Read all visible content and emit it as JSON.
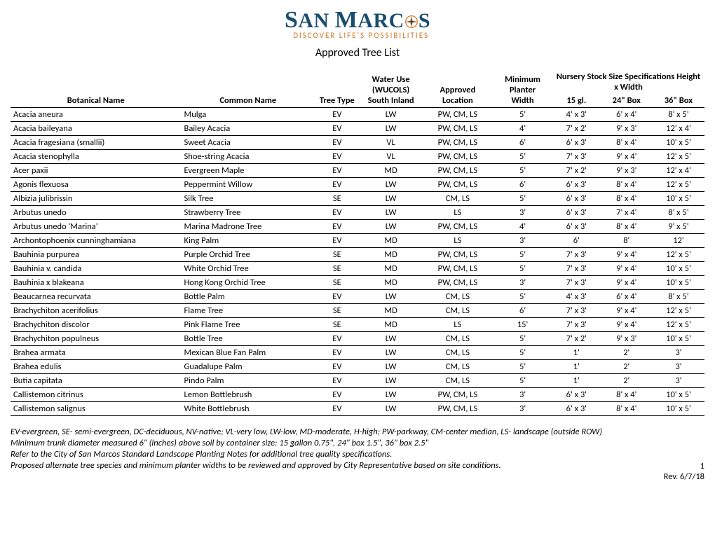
{
  "logo": {
    "main_text_pre": "S",
    "main_text_an": "AN",
    "main_text_space": " ",
    "main_text_m": "M",
    "main_text_arc": "ARC",
    "main_text_s": "S",
    "subtitle": "DISCOVER LIFE'S POSSIBILITIES"
  },
  "page_title": "Approved Tree List",
  "headers": {
    "botanical": "Botanical Name",
    "common": "Common Name",
    "tree_type": "Tree Type",
    "water_use_1": "Water Use",
    "water_use_2": "(WUCOLS)",
    "water_use_3": "South Inland",
    "approved_location": "Approved Location",
    "minimum_1": "Minimum",
    "minimum_2": "Planter",
    "minimum_3": "Width",
    "nursery": "Nursery Stock Size Specifications  Height x Width",
    "gl15": "15 gl.",
    "box24": "24\" Box",
    "box36": "36\" Box"
  },
  "rows": [
    {
      "botanical": "Acacia aneura",
      "common": "Mulga",
      "type": "EV",
      "water": "LW",
      "location": "PW, CM, LS",
      "width": "5'",
      "gl15": "4' x 3'",
      "box24": "6' x 4'",
      "box36": "8' x 5'"
    },
    {
      "botanical": "Acacia baileyana",
      "common": "Bailey Acacia",
      "type": "EV",
      "water": "LW",
      "location": "PW, CM, LS",
      "width": "4'",
      "gl15": "7' x 2'",
      "box24": "9' x 3'",
      "box36": "12' x 4'"
    },
    {
      "botanical": "Acacia fragesiana (smallii)",
      "common": "Sweet Acacia",
      "type": "EV",
      "water": "VL",
      "location": "PW, CM, LS",
      "width": "6'",
      "gl15": "6' x 3'",
      "box24": "8' x 4'",
      "box36": "10' x 5'"
    },
    {
      "botanical": "Acacia stenophylla",
      "common": "Shoe-string Acacia",
      "type": "EV",
      "water": "VL",
      "location": "PW, CM, LS",
      "width": "5'",
      "gl15": "7' x 3'",
      "box24": "9' x 4'",
      "box36": "12' x 5'"
    },
    {
      "botanical": "Acer paxii",
      "common": "Evergreen Maple",
      "type": "EV",
      "water": "MD",
      "location": "PW, CM, LS",
      "width": "5'",
      "gl15": "7' x 2'",
      "box24": "9' x 3'",
      "box36": "12' x 4'"
    },
    {
      "botanical": "Agonis flexuosa",
      "common": "Peppermint Willow",
      "type": "EV",
      "water": "LW",
      "location": "PW, CM, LS",
      "width": "6'",
      "gl15": "6' x 3'",
      "box24": "8' x 4'",
      "box36": "12' x 5'"
    },
    {
      "botanical": "Albizia julibrissin",
      "common": "Silk Tree",
      "type": "SE",
      "water": "LW",
      "location": "CM, LS",
      "width": "5'",
      "gl15": "6' x 3'",
      "box24": "8' x 4'",
      "box36": "10' x 5'"
    },
    {
      "botanical": "Arbutus unedo",
      "common": "Strawberry Tree",
      "type": "EV",
      "water": "LW",
      "location": "LS",
      "width": "3'",
      "gl15": "6' x 3'",
      "box24": "7' x 4'",
      "box36": "8' x 5'"
    },
    {
      "botanical": "Arbutus unedo 'Marina'",
      "common": "Marina Madrone Tree",
      "type": "EV",
      "water": "LW",
      "location": "PW, CM, LS",
      "width": "4'",
      "gl15": "6' x 3'",
      "box24": "8' x 4'",
      "box36": "9' x 5'"
    },
    {
      "botanical": "Archontophoenix cunninghamiana",
      "common": "King Palm",
      "type": "EV",
      "water": "MD",
      "location": "LS",
      "width": "3'",
      "gl15": "6'",
      "box24": "8'",
      "box36": "12'"
    },
    {
      "botanical": "Bauhinia purpurea",
      "common": "Purple Orchid Tree",
      "type": "SE",
      "water": "MD",
      "location": "PW, CM, LS",
      "width": "5'",
      "gl15": "7' x 3'",
      "box24": "9' x 4'",
      "box36": "12' x 5'"
    },
    {
      "botanical": "Bauhinia v. candida",
      "common": "White Orchid Tree",
      "type": "SE",
      "water": "MD",
      "location": "PW, CM, LS",
      "width": "5'",
      "gl15": "7' x 3'",
      "box24": "9' x 4'",
      "box36": "10' x 5'"
    },
    {
      "botanical": "Bauhinia x blakeana",
      "common": "Hong Kong Orchid Tree",
      "type": "SE",
      "water": "MD",
      "location": "PW, CM, LS",
      "width": "3'",
      "gl15": "7' x 3'",
      "box24": "9' x 4'",
      "box36": "10' x 5'"
    },
    {
      "botanical": "Beaucarnea recurvata",
      "common": "Bottle Palm",
      "type": "EV",
      "water": "LW",
      "location": "CM, LS",
      "width": "5'",
      "gl15": "4' x 3'",
      "box24": "6' x 4'",
      "box36": "8' x 5'"
    },
    {
      "botanical": "Brachychiton acerifolius",
      "common": "Flame Tree",
      "type": "SE",
      "water": "MD",
      "location": "CM, LS",
      "width": "6'",
      "gl15": "7' x 3'",
      "box24": "9' x 4'",
      "box36": "12' x 5'"
    },
    {
      "botanical": "Brachychiton discolor",
      "common": "Pink Flame Tree",
      "type": "SE",
      "water": "MD",
      "location": "LS",
      "width": "15'",
      "gl15": "7' x 3'",
      "box24": "9' x 4'",
      "box36": "12' x 5'"
    },
    {
      "botanical": "Brachychiton populneus",
      "common": "Bottle Tree",
      "type": "EV",
      "water": "LW",
      "location": "CM, LS",
      "width": "5'",
      "gl15": "7' x 2'",
      "box24": "9' x 3'",
      "box36": "10' x 5'"
    },
    {
      "botanical": "Brahea armata",
      "common": "Mexican Blue Fan Palm",
      "type": "EV",
      "water": "LW",
      "location": "CM, LS",
      "width": "5'",
      "gl15": "1'",
      "box24": "2'",
      "box36": "3'"
    },
    {
      "botanical": "Brahea edulis",
      "common": "Guadalupe Palm",
      "type": "EV",
      "water": "LW",
      "location": "CM, LS",
      "width": "5'",
      "gl15": "1'",
      "box24": "2'",
      "box36": "3'"
    },
    {
      "botanical": "Butia capitata",
      "common": "Pindo Palm",
      "type": "EV",
      "water": "LW",
      "location": "CM, LS",
      "width": "5'",
      "gl15": "1'",
      "box24": "2'",
      "box36": "3'"
    },
    {
      "botanical": "Callistemon citrinus",
      "common": "Lemon Bottlebrush",
      "type": "EV",
      "water": "LW",
      "location": "PW, CM, LS",
      "width": "3'",
      "gl15": "6' x 3'",
      "box24": "8' x 4'",
      "box36": "10' x 5'"
    },
    {
      "botanical": "Callistemon salignus",
      "common": "White Bottlebrush",
      "type": "EV",
      "water": "LW",
      "location": "PW, CM, LS",
      "width": "3'",
      "gl15": "6' x 3'",
      "box24": "8' x 4'",
      "box36": "10' x 5'"
    }
  ],
  "footer": {
    "note1": "EV-evergreen, SE- semi-evergreen, DC-deciduous, NV-native; VL-very low, LW-low, MD-moderate, H-high; PW-parkway, CM-center median, LS- landscape (outside ROW)",
    "note2": "Minimum trunk diameter measured 6\" (inches) above soil by container size: 15 gallon 0.75\", 24\" box 1.5\", 36\" box 2.5\"",
    "note3": "Refer to the City of San Marcos Standard Landscape Planting Notes for additional tree quality specifications.",
    "note4": "Proposed alternate tree species and minimum planter widths to be reviewed and approved by City Representative based on site conditions.",
    "page_number": "1",
    "rev_date": "Rev. 6/7/18"
  },
  "colors": {
    "primary": "#1a4d6e",
    "accent": "#d17a2a",
    "text": "#000000",
    "background": "#ffffff",
    "border": "#000000"
  }
}
